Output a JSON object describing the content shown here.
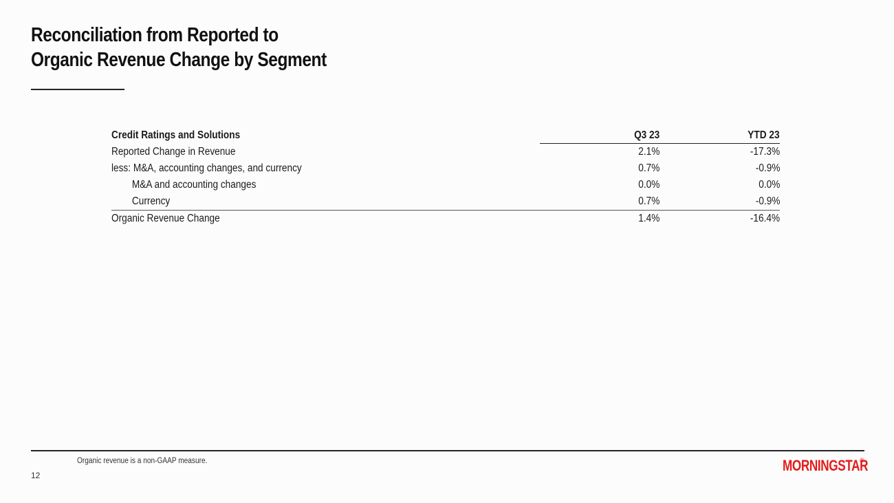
{
  "slide": {
    "title_line1": "Reconciliation from Reported to",
    "title_line2": "Organic Revenue Change by Segment",
    "page_number": "12",
    "footnote": "Organic revenue is a non-GAAP measure.",
    "logo_text": "MORNINGSTAR",
    "logo_registered": "®"
  },
  "table": {
    "header": {
      "label": "Credit Ratings and Solutions",
      "col1": "Q3 23",
      "col2": "YTD 23"
    },
    "rows": [
      {
        "label": "Reported Change in Revenue",
        "q3": "2.1%",
        "ytd": "-17.3%"
      },
      {
        "label": "less: M&A, accounting changes, and currency",
        "q3": "0.7%",
        "ytd": "-0.9%"
      },
      {
        "label": "M&A and accounting changes",
        "q3": "0.0%",
        "ytd": "0.0%"
      },
      {
        "label": "Currency",
        "q3": "0.7%",
        "ytd": "-0.9%"
      },
      {
        "label": "Organic Revenue Change",
        "q3": "1.4%",
        "ytd": "-16.4%"
      }
    ]
  },
  "colors": {
    "brand_red": "#e41b1b",
    "text": "#111111"
  }
}
